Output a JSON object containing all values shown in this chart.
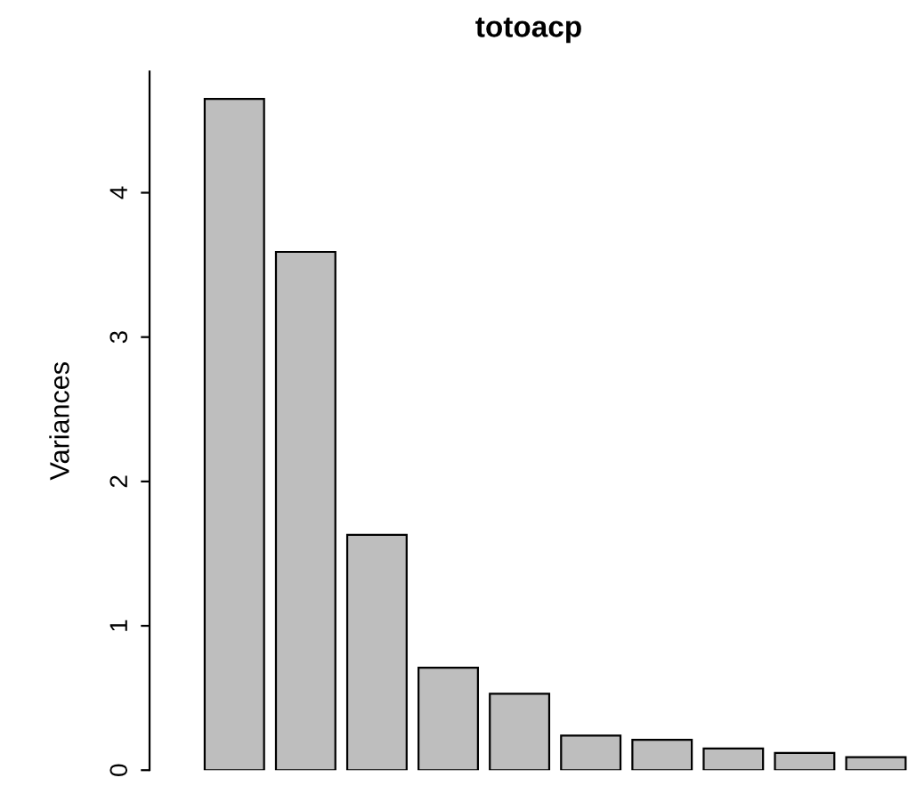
{
  "chart_data": {
    "type": "bar",
    "title": "totoacp",
    "ylabel": "Variances",
    "categories": [
      null,
      null,
      null,
      null,
      null,
      null,
      null,
      null,
      null,
      null
    ],
    "values": [
      4.65,
      3.59,
      1.63,
      0.71,
      0.53,
      0.24,
      0.21,
      0.15,
      0.12,
      0.09
    ],
    "color": "#bebebe",
    "ylim": [
      0,
      4.84
    ],
    "yticks": [
      0,
      1,
      2,
      3,
      4
    ],
    "grid": false,
    "legend": false
  }
}
